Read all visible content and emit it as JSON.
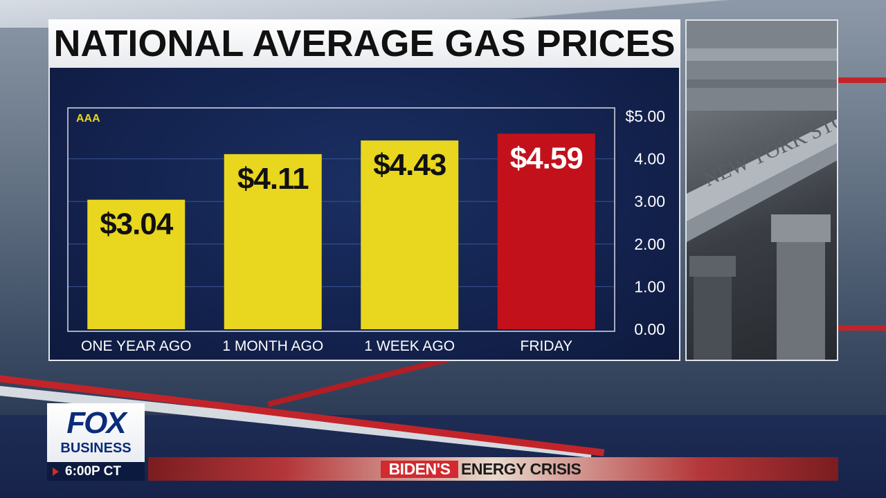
{
  "title": "NATIONAL AVERAGE GAS PRICES",
  "chart_data": {
    "type": "bar",
    "source": "AAA",
    "categories": [
      "ONE YEAR AGO",
      "1 MONTH AGO",
      "1 WEEK AGO",
      "FRIDAY"
    ],
    "values": [
      3.04,
      4.11,
      4.43,
      4.59
    ],
    "value_labels": [
      "$3.04",
      "$4.11",
      "$4.43",
      "$4.59"
    ],
    "bar_colors": [
      "#e8d61f",
      "#e8d61f",
      "#e8d61f",
      "#c3111c"
    ],
    "value_label_colors": [
      "#111111",
      "#111111",
      "#111111",
      "#ffffff"
    ],
    "y_ticks": [
      {
        "value": 5,
        "label": "$5.00"
      },
      {
        "value": 4,
        "label": "4.00"
      },
      {
        "value": 3,
        "label": "3.00"
      },
      {
        "value": 2,
        "label": "2.00"
      },
      {
        "value": 1,
        "label": "1.00"
      },
      {
        "value": 0,
        "label": "0.00"
      }
    ],
    "ylim": [
      0,
      5
    ],
    "y_axis_side": "right",
    "grid": true
  },
  "photo": {
    "inscription": "NEW YORK STOCK"
  },
  "branding": {
    "logo_top": "FOX",
    "logo_bottom": "BUSINESS",
    "time": "6:00P CT"
  },
  "headline": {
    "highlight": "BIDEN'S",
    "text": "ENERGY CRISIS"
  }
}
